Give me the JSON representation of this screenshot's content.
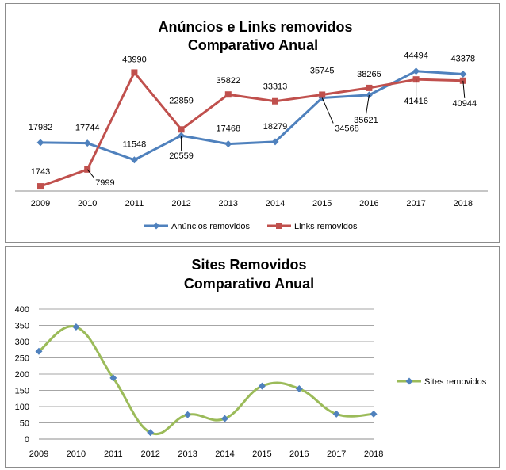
{
  "chart_data": [
    {
      "type": "line",
      "title": "Anúncios e Links removidos",
      "subtitle": "Comparativo Anual",
      "categories": [
        "2009",
        "2010",
        "2011",
        "2012",
        "2013",
        "2014",
        "2015",
        "2016",
        "2017",
        "2018"
      ],
      "series": [
        {
          "name": "Anúncios removidos",
          "color": "#4f81bd",
          "marker": "diamond",
          "values": [
            17982,
            17744,
            11548,
            20559,
            17468,
            18279,
            34568,
            35621,
            44494,
            43378
          ]
        },
        {
          "name": "Links removidos",
          "color": "#c0504d",
          "marker": "square",
          "values": [
            1743,
            7999,
            43990,
            22859,
            35822,
            33313,
            35745,
            38265,
            41416,
            40944
          ]
        }
      ],
      "ylim": [
        0,
        50000
      ],
      "grid": false,
      "legend": "bottom"
    },
    {
      "type": "line",
      "title": "Sites Removidos",
      "subtitle": "Comparativo Anual",
      "categories": [
        "2009",
        "2010",
        "2011",
        "2012",
        "2013",
        "2014",
        "2015",
        "2016",
        "2017",
        "2018"
      ],
      "series": [
        {
          "name": "Sites removidos",
          "color": "#9bbb59",
          "marker_color": "#4f81bd",
          "marker": "diamond",
          "smooth": true,
          "values": [
            270,
            345,
            188,
            20,
            75,
            63,
            163,
            155,
            77,
            77
          ]
        }
      ],
      "yticks": [
        "0",
        "50",
        "100",
        "150",
        "200",
        "250",
        "300",
        "350",
        "400"
      ],
      "ylim": [
        0,
        400
      ],
      "grid": true,
      "legend": "right"
    }
  ]
}
